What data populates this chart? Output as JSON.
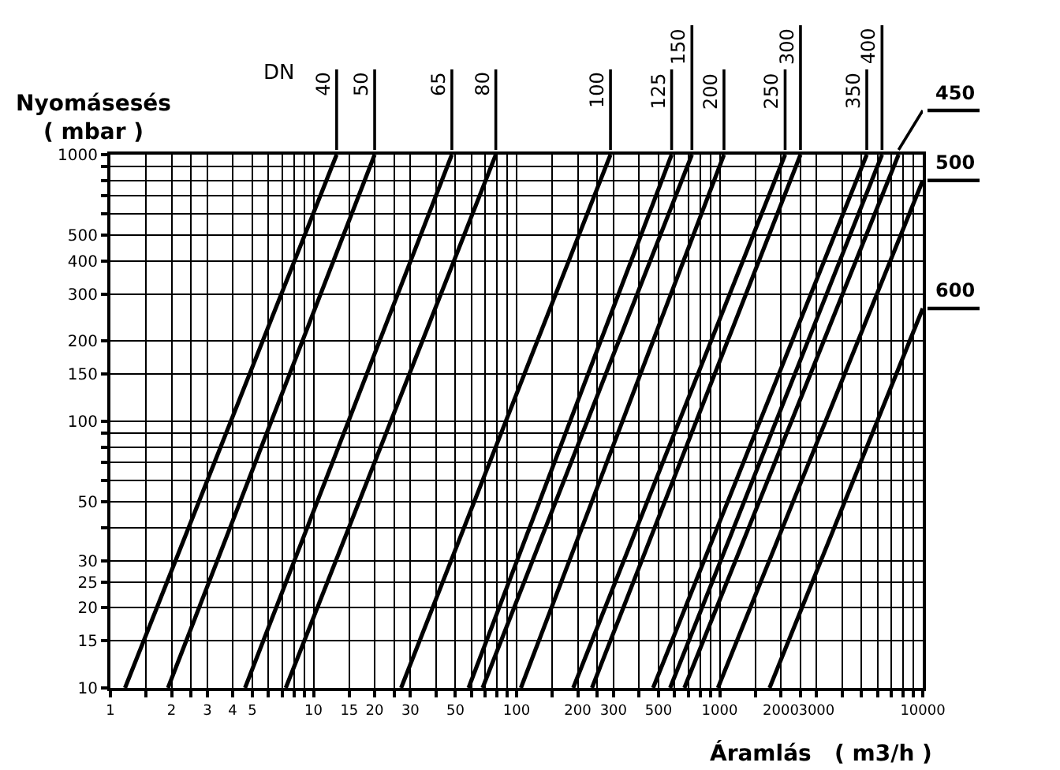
{
  "chart_data": {
    "type": "line",
    "ylabel": "Nyomásesés\n( mbar )",
    "xlabel": "Áramlás   ( m3/h )",
    "legend_title": "DN",
    "log": "xy",
    "grid": true,
    "legend": false,
    "marker": "none",
    "line_style": "solid",
    "xlim": [
      1,
      10000
    ],
    "ylim": [
      10,
      1000
    ],
    "xticks": [
      1,
      {
        "value": 1.5,
        "label": null
      },
      2,
      {
        "value": 2.5,
        "label": null
      },
      3,
      4,
      5,
      {
        "value": 6,
        "label": null
      },
      {
        "value": 7,
        "label": null
      },
      {
        "value": 8,
        "label": null
      },
      {
        "value": 9,
        "label": null
      },
      10,
      15,
      20,
      {
        "value": 25,
        "label": null
      },
      30,
      {
        "value": 40,
        "label": null
      },
      50,
      {
        "value": 60,
        "label": null
      },
      {
        "value": 70,
        "label": null
      },
      {
        "value": 80,
        "label": null
      },
      {
        "value": 90,
        "label": null
      },
      100,
      {
        "value": 150,
        "label": null
      },
      200,
      {
        "value": 250,
        "label": null
      },
      300,
      {
        "value": 400,
        "label": null
      },
      500,
      {
        "value": 600,
        "label": null
      },
      {
        "value": 700,
        "label": null
      },
      {
        "value": 800,
        "label": null
      },
      {
        "value": 900,
        "label": null
      },
      1000,
      {
        "value": 1500,
        "label": null
      },
      2000,
      {
        "value": 2500,
        "label": null
      },
      3000,
      {
        "value": 4000,
        "label": null
      },
      {
        "value": 5000,
        "label": null
      },
      {
        "value": 6000,
        "label": null
      },
      {
        "value": 7000,
        "label": null
      },
      {
        "value": 8000,
        "label": null
      },
      {
        "value": 9000,
        "label": null
      },
      10000
    ],
    "yticks": [
      10,
      15,
      20,
      25,
      30,
      {
        "value": 40,
        "label": null
      },
      50,
      {
        "value": 60,
        "label": null
      },
      {
        "value": 70,
        "label": null
      },
      {
        "value": 80,
        "label": null
      },
      {
        "value": 90,
        "label": null
      },
      100,
      150,
      200,
      300,
      400,
      500,
      {
        "value": 600,
        "label": null
      },
      {
        "value": 700,
        "label": null
      },
      {
        "value": 800,
        "label": null
      },
      {
        "value": 900,
        "label": null
      },
      1000
    ],
    "series": [
      {
        "name": "40",
        "color": "#000000",
        "x": [
          1.18,
          13
        ],
        "values": [
          10,
          1000
        ]
      },
      {
        "name": "50",
        "color": "#000000",
        "x": [
          1.92,
          20
        ],
        "values": [
          10,
          1000
        ]
      },
      {
        "name": "65",
        "color": "#000000",
        "x": [
          4.6,
          48
        ],
        "values": [
          10,
          1000
        ]
      },
      {
        "name": "80",
        "color": "#000000",
        "x": [
          7.3,
          79
        ],
        "values": [
          10,
          1000
        ]
      },
      {
        "name": "100",
        "color": "#000000",
        "x": [
          27,
          290
        ],
        "values": [
          10,
          1000
        ]
      },
      {
        "name": "125",
        "color": "#000000",
        "x": [
          58,
          580
        ],
        "values": [
          10,
          1000
        ]
      },
      {
        "name": "150",
        "color": "#000000",
        "x": [
          68,
          730
        ],
        "values": [
          10,
          1000
        ]
      },
      {
        "name": "200",
        "color": "#000000",
        "x": [
          105,
          1050
        ],
        "values": [
          10,
          1000
        ]
      },
      {
        "name": "250",
        "color": "#000000",
        "x": [
          190,
          2100
        ],
        "values": [
          10,
          1000
        ]
      },
      {
        "name": "300",
        "color": "#000000",
        "x": [
          235,
          2500
        ],
        "values": [
          10,
          1000
        ]
      },
      {
        "name": "350",
        "color": "#000000",
        "x": [
          470,
          5300
        ],
        "values": [
          10,
          1000
        ]
      },
      {
        "name": "400",
        "color": "#000000",
        "x": [
          570,
          6300
        ],
        "values": [
          10,
          1000
        ]
      },
      {
        "name": "450",
        "color": "#000000",
        "x": [
          670,
          7600
        ],
        "values": [
          10,
          1000
        ]
      },
      {
        "name": "500",
        "color": "#000000",
        "x": [
          980,
          10000
        ],
        "values": [
          10,
          800
        ]
      },
      {
        "name": "600",
        "color": "#000000",
        "x": [
          1760,
          10000
        ],
        "values": [
          10,
          265
        ]
      }
    ]
  }
}
